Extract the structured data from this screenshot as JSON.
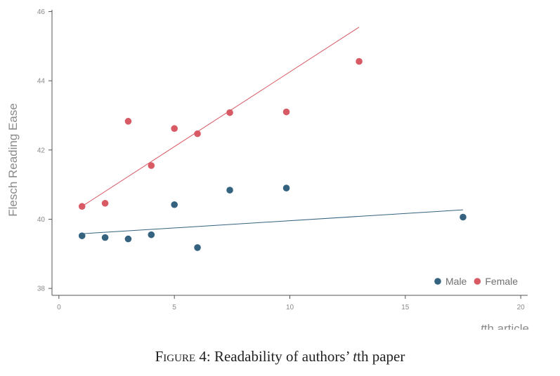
{
  "chart_data": {
    "type": "scatter",
    "xlabel_italic": "t",
    "xlabel_rest": "th article",
    "ylabel": "Flesch Reading Ease",
    "xlim": [
      -0.3,
      20.3
    ],
    "ylim": [
      37.8,
      46.05
    ],
    "xticks": [
      0,
      5,
      10,
      15,
      20
    ],
    "yticks": [
      38,
      40,
      42,
      44,
      46
    ],
    "grid": false,
    "legend_position": "bottom-right",
    "series": [
      {
        "name": "Male",
        "color": "#34627f",
        "points": [
          [
            1,
            39.52
          ],
          [
            2,
            39.47
          ],
          [
            3,
            39.43
          ],
          [
            4,
            39.55
          ],
          [
            5,
            40.42
          ],
          [
            6,
            39.18
          ],
          [
            7.4,
            40.84
          ],
          [
            9.85,
            40.9
          ],
          [
            17.5,
            40.06
          ]
        ],
        "fit": [
          [
            1,
            39.58
          ],
          [
            17.5,
            40.27
          ]
        ]
      },
      {
        "name": "Female",
        "color": "#d75a64",
        "points": [
          [
            1,
            40.37
          ],
          [
            2,
            40.46
          ],
          [
            3,
            42.83
          ],
          [
            4,
            41.55
          ],
          [
            5,
            42.62
          ],
          [
            6,
            42.47
          ],
          [
            7.4,
            43.08
          ],
          [
            9.85,
            43.1
          ],
          [
            13,
            44.56
          ]
        ],
        "fit": [
          [
            1,
            40.37
          ],
          [
            13,
            45.55
          ]
        ]
      }
    ]
  },
  "caption": {
    "label": "Figure 4",
    "text_before": ": Readability of authors’ ",
    "italic": "t",
    "text_after": "th paper"
  }
}
